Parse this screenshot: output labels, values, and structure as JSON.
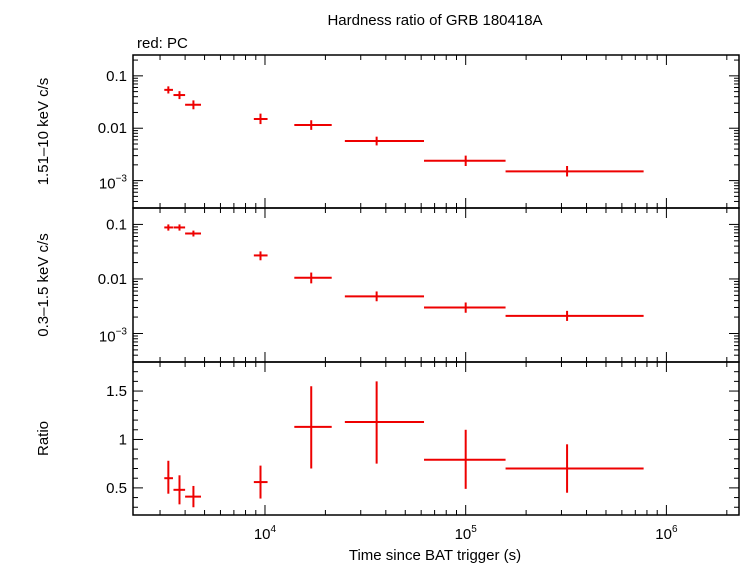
{
  "chart_data": {
    "type": "scatter",
    "title": "Hardness ratio of GRB 180418A",
    "legend": "red: PC",
    "xlabel": "Time since BAT trigger (s)",
    "x_scale": "log",
    "xlim": [
      2200,
      2300000
    ],
    "x_ticks": [
      {
        "value": 10000,
        "base": "10",
        "exp": "4"
      },
      {
        "value": 100000,
        "base": "10",
        "exp": "5"
      },
      {
        "value": 1000000,
        "base": "10",
        "exp": "6"
      }
    ],
    "series_color": "#ee0000",
    "panels": [
      {
        "ylabel": "1.51–10 keV c/s",
        "y_scale": "log",
        "ylim": [
          0.0003,
          0.25
        ],
        "y_ticks": [
          {
            "value": 0.1,
            "label": "0.1"
          },
          {
            "value": 0.01,
            "label": "0.01"
          },
          {
            "value": 0.001,
            "base": "10",
            "exp": "−3"
          }
        ],
        "points": [
          {
            "x": 3300,
            "x_lo": 3150,
            "x_hi": 3480,
            "y": 0.054,
            "y_lo": 0.046,
            "y_hi": 0.063
          },
          {
            "x": 3750,
            "x_lo": 3500,
            "x_hi": 4000,
            "y": 0.043,
            "y_lo": 0.036,
            "y_hi": 0.051
          },
          {
            "x": 4400,
            "x_lo": 4000,
            "x_hi": 4800,
            "y": 0.028,
            "y_lo": 0.023,
            "y_hi": 0.034
          },
          {
            "x": 9500,
            "x_lo": 8800,
            "x_hi": 10300,
            "y": 0.015,
            "y_lo": 0.012,
            "y_hi": 0.019
          },
          {
            "x": 17000,
            "x_lo": 14000,
            "x_hi": 21500,
            "y": 0.0115,
            "y_lo": 0.0093,
            "y_hi": 0.0142
          },
          {
            "x": 36000,
            "x_lo": 25000,
            "x_hi": 62000,
            "y": 0.0057,
            "y_lo": 0.0047,
            "y_hi": 0.0069
          },
          {
            "x": 100000,
            "x_lo": 62000,
            "x_hi": 158000,
            "y": 0.0024,
            "y_lo": 0.0019,
            "y_hi": 0.003
          },
          {
            "x": 320000,
            "x_lo": 158000,
            "x_hi": 770000,
            "y": 0.0015,
            "y_lo": 0.0012,
            "y_hi": 0.0019
          }
        ]
      },
      {
        "ylabel": "0.3–1.5 keV c/s",
        "y_scale": "log",
        "ylim": [
          0.0003,
          0.2
        ],
        "y_ticks": [
          {
            "value": 0.1,
            "label": "0.1"
          },
          {
            "value": 0.01,
            "label": "0.01"
          },
          {
            "value": 0.001,
            "base": "10",
            "exp": "−3"
          }
        ],
        "points": [
          {
            "x": 3300,
            "x_lo": 3150,
            "x_hi": 3480,
            "y": 0.088,
            "y_lo": 0.077,
            "y_hi": 0.1
          },
          {
            "x": 3750,
            "x_lo": 3500,
            "x_hi": 4000,
            "y": 0.088,
            "y_lo": 0.077,
            "y_hi": 0.1
          },
          {
            "x": 4400,
            "x_lo": 4000,
            "x_hi": 4800,
            "y": 0.068,
            "y_lo": 0.06,
            "y_hi": 0.077
          },
          {
            "x": 9500,
            "x_lo": 8800,
            "x_hi": 10300,
            "y": 0.027,
            "y_lo": 0.022,
            "y_hi": 0.032
          },
          {
            "x": 17000,
            "x_lo": 14000,
            "x_hi": 21500,
            "y": 0.0105,
            "y_lo": 0.0083,
            "y_hi": 0.0131
          },
          {
            "x": 36000,
            "x_lo": 25000,
            "x_hi": 62000,
            "y": 0.0048,
            "y_lo": 0.0039,
            "y_hi": 0.0059
          },
          {
            "x": 100000,
            "x_lo": 62000,
            "x_hi": 158000,
            "y": 0.003,
            "y_lo": 0.0024,
            "y_hi": 0.0037
          },
          {
            "x": 320000,
            "x_lo": 158000,
            "x_hi": 770000,
            "y": 0.0021,
            "y_lo": 0.0017,
            "y_hi": 0.0026
          }
        ]
      },
      {
        "ylabel": "Ratio",
        "y_scale": "linear",
        "ylim": [
          0.22,
          1.8
        ],
        "y_ticks": [
          {
            "value": 0.5,
            "label": "0.5"
          },
          {
            "value": 1,
            "label": "1"
          },
          {
            "value": 1.5,
            "label": "1.5"
          }
        ],
        "points": [
          {
            "x": 3300,
            "x_lo": 3150,
            "x_hi": 3480,
            "y": 0.6,
            "y_lo": 0.44,
            "y_hi": 0.78
          },
          {
            "x": 3750,
            "x_lo": 3500,
            "x_hi": 4000,
            "y": 0.48,
            "y_lo": 0.33,
            "y_hi": 0.63
          },
          {
            "x": 4400,
            "x_lo": 4000,
            "x_hi": 4800,
            "y": 0.41,
            "y_lo": 0.3,
            "y_hi": 0.52
          },
          {
            "x": 9500,
            "x_lo": 8800,
            "x_hi": 10300,
            "y": 0.56,
            "y_lo": 0.39,
            "y_hi": 0.73
          },
          {
            "x": 17000,
            "x_lo": 14000,
            "x_hi": 21500,
            "y": 1.13,
            "y_lo": 0.7,
            "y_hi": 1.55
          },
          {
            "x": 36000,
            "x_lo": 25000,
            "x_hi": 62000,
            "y": 1.18,
            "y_lo": 0.75,
            "y_hi": 1.6
          },
          {
            "x": 100000,
            "x_lo": 62000,
            "x_hi": 158000,
            "y": 0.79,
            "y_lo": 0.49,
            "y_hi": 1.1
          },
          {
            "x": 320000,
            "x_lo": 158000,
            "x_hi": 770000,
            "y": 0.7,
            "y_lo": 0.45,
            "y_hi": 0.95
          }
        ]
      }
    ]
  }
}
